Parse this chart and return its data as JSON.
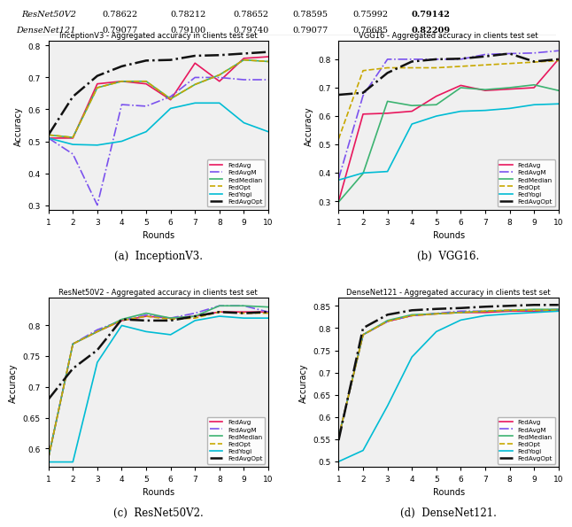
{
  "table": {
    "rows": [
      "ResNet50V2",
      "DenseNet121"
    ],
    "resnet_vals": [
      "0.78622",
      "0.78212",
      "0.78652",
      "0.78595",
      "0.75992",
      "0.79142"
    ],
    "dense_vals": [
      "0.79077",
      "0.79100",
      "0.79740",
      "0.79077",
      "0.76685",
      "0.82209"
    ]
  },
  "rounds": [
    1,
    2,
    3,
    4,
    5,
    6,
    7,
    8,
    9,
    10
  ],
  "inception": {
    "title": "InceptionV3 - Aggregated accuracy in clients test set",
    "xlabel": "Rounds",
    "ylabel": "Accuracy",
    "caption": "(a)  InceptionV3.",
    "ylim": [
      0.285,
      0.815
    ],
    "yticks": [
      0.3,
      0.4,
      0.5,
      0.6,
      0.7,
      0.8
    ],
    "FedAvg": [
      0.51,
      0.51,
      0.68,
      0.688,
      0.68,
      0.63,
      0.745,
      0.688,
      0.76,
      0.765
    ],
    "FedAvgM": [
      0.51,
      0.46,
      0.3,
      0.615,
      0.61,
      0.64,
      0.7,
      0.7,
      0.693,
      0.693
    ],
    "FedMedian": [
      0.52,
      0.512,
      0.668,
      0.688,
      0.688,
      0.633,
      0.678,
      0.708,
      0.755,
      0.75
    ],
    "FedOpt": [
      0.52,
      0.512,
      0.668,
      0.688,
      0.688,
      0.633,
      0.678,
      0.708,
      0.755,
      0.75
    ],
    "FedYogi": [
      0.51,
      0.49,
      0.488,
      0.5,
      0.53,
      0.603,
      0.62,
      0.62,
      0.558,
      0.53
    ],
    "FedAvgOpt": [
      0.52,
      0.64,
      0.705,
      0.735,
      0.753,
      0.755,
      0.768,
      0.77,
      0.775,
      0.78
    ]
  },
  "vgg16": {
    "title": "VGG16 - Aggregated accuracy in clients test set",
    "xlabel": "Rounds",
    "ylabel": "Accuracy",
    "caption": "(b)  VGG16.",
    "ylim": [
      0.27,
      0.865
    ],
    "yticks": [
      0.3,
      0.4,
      0.5,
      0.6,
      0.7,
      0.8
    ],
    "FedAvg": [
      0.3,
      0.607,
      0.61,
      0.617,
      0.67,
      0.708,
      0.69,
      0.695,
      0.7,
      0.8
    ],
    "FedAvgM": [
      0.38,
      0.672,
      0.8,
      0.8,
      0.8,
      0.8,
      0.817,
      0.82,
      0.822,
      0.83
    ],
    "FedMedian": [
      0.298,
      0.398,
      0.652,
      0.637,
      0.64,
      0.7,
      0.693,
      0.7,
      0.71,
      0.69
    ],
    "FedOpt": [
      0.52,
      0.76,
      0.77,
      0.77,
      0.77,
      0.775,
      0.78,
      0.785,
      0.79,
      0.795
    ],
    "FedYogi": [
      0.375,
      0.4,
      0.405,
      0.572,
      0.6,
      0.617,
      0.62,
      0.627,
      0.64,
      0.643
    ],
    "FedAvgOpt": [
      0.675,
      0.682,
      0.752,
      0.792,
      0.8,
      0.802,
      0.81,
      0.82,
      0.792,
      0.8
    ]
  },
  "resnet": {
    "title": "ResNet50V2 - Aggregated accuracy in clients test set",
    "xlabel": "Rounds",
    "ylabel": "Accuracy",
    "caption": "(c)  ResNet50V2.",
    "ylim": [
      0.57,
      0.845
    ],
    "yticks": [
      0.6,
      0.65,
      0.7,
      0.75,
      0.8
    ],
    "FedAvg": [
      0.585,
      0.77,
      0.79,
      0.808,
      0.815,
      0.812,
      0.815,
      0.822,
      0.822,
      0.822
    ],
    "FedAvgM": [
      0.585,
      0.77,
      0.793,
      0.808,
      0.817,
      0.812,
      0.82,
      0.832,
      0.832,
      0.822
    ],
    "FedMedian": [
      0.585,
      0.77,
      0.79,
      0.81,
      0.82,
      0.812,
      0.815,
      0.832,
      0.832,
      0.83
    ],
    "FedOpt": [
      0.585,
      0.77,
      0.79,
      0.808,
      0.815,
      0.81,
      0.812,
      0.822,
      0.82,
      0.82
    ],
    "FedYogi": [
      0.578,
      0.578,
      0.74,
      0.8,
      0.79,
      0.785,
      0.808,
      0.815,
      0.812,
      0.812
    ],
    "FedAvgOpt": [
      0.68,
      0.73,
      0.76,
      0.81,
      0.808,
      0.808,
      0.815,
      0.822,
      0.82,
      0.822
    ]
  },
  "densenet": {
    "title": "DenseNet121 - Aggregated accuracy in clients test set",
    "xlabel": "Rounds",
    "ylabel": "Accuracy",
    "caption": "(d)  DenseNet121.",
    "ylim": [
      0.488,
      0.868
    ],
    "yticks": [
      0.5,
      0.55,
      0.6,
      0.65,
      0.7,
      0.75,
      0.8,
      0.85
    ],
    "FedAvg": [
      0.555,
      0.785,
      0.815,
      0.828,
      0.832,
      0.835,
      0.835,
      0.838,
      0.838,
      0.84
    ],
    "FedAvgM": [
      0.555,
      0.785,
      0.815,
      0.828,
      0.833,
      0.838,
      0.838,
      0.84,
      0.84,
      0.842
    ],
    "FedMedian": [
      0.555,
      0.785,
      0.817,
      0.83,
      0.832,
      0.835,
      0.838,
      0.84,
      0.842,
      0.842
    ],
    "FedOpt": [
      0.555,
      0.785,
      0.815,
      0.828,
      0.832,
      0.835,
      0.838,
      0.84,
      0.84,
      0.84
    ],
    "FedYogi": [
      0.5,
      0.525,
      0.625,
      0.735,
      0.792,
      0.818,
      0.828,
      0.832,
      0.835,
      0.838
    ],
    "FedAvgOpt": [
      0.548,
      0.8,
      0.83,
      0.84,
      0.843,
      0.845,
      0.848,
      0.85,
      0.852,
      0.852
    ]
  },
  "colors": {
    "FedAvg": "#e8175d",
    "FedAvgM": "#7b52ee",
    "FedMedian": "#3cb371",
    "FedOpt": "#c8a800",
    "FedYogi": "#00bcd4",
    "FedAvgOpt": "#111111"
  },
  "linestyles": {
    "FedAvg": "-",
    "FedAvgM": "-.",
    "FedMedian": "-",
    "FedOpt": "--",
    "FedYogi": "-",
    "FedAvgOpt": "-."
  },
  "linewidths": {
    "FedAvg": 1.2,
    "FedAvgM": 1.2,
    "FedMedian": 1.2,
    "FedOpt": 1.2,
    "FedYogi": 1.2,
    "FedAvgOpt": 1.8
  }
}
